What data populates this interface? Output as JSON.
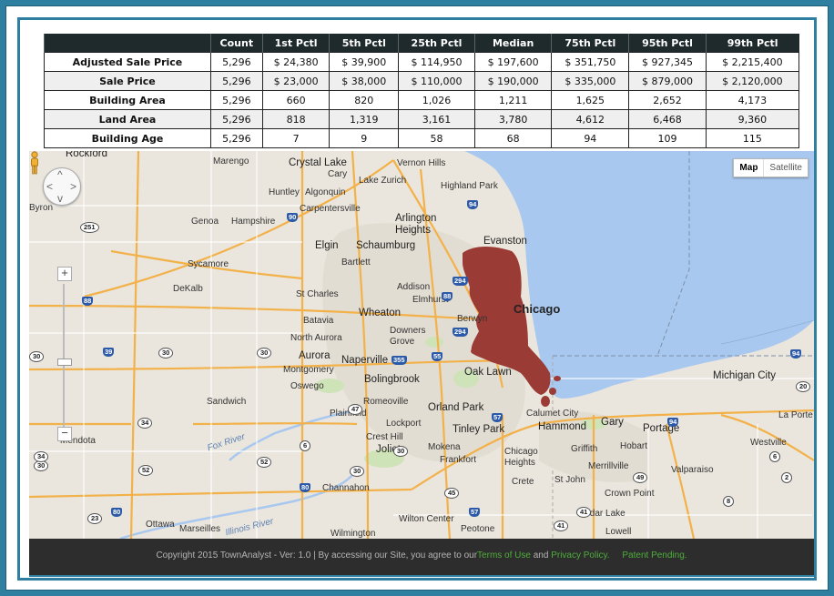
{
  "table": {
    "headers": [
      "",
      "Count",
      "1st Pctl",
      "5th Pctl",
      "25th Pctl",
      "Median",
      "75th Pctl",
      "95th Pctl",
      "99th Pctl"
    ],
    "rows": [
      {
        "label": "Adjusted Sale Price",
        "values": [
          "5,296",
          "$ 24,380",
          "$ 39,900",
          "$ 114,950",
          "$ 197,600",
          "$ 351,750",
          "$ 927,345",
          "$ 2,215,400"
        ]
      },
      {
        "label": "Sale Price",
        "values": [
          "5,296",
          "$ 23,000",
          "$ 38,000",
          "$ 110,000",
          "$ 190,000",
          "$ 335,000",
          "$ 879,000",
          "$ 2,120,000"
        ]
      },
      {
        "label": "Building Area",
        "values": [
          "5,296",
          "660",
          "820",
          "1,026",
          "1,211",
          "1,625",
          "2,652",
          "4,173"
        ]
      },
      {
        "label": "Land Area",
        "values": [
          "5,296",
          "818",
          "1,319",
          "3,161",
          "3,780",
          "4,612",
          "6,468",
          "9,360"
        ]
      },
      {
        "label": "Building Age",
        "values": [
          "5,296",
          "7",
          "9",
          "58",
          "68",
          "94",
          "109",
          "115"
        ]
      }
    ]
  },
  "map": {
    "type_buttons": {
      "map": "Map",
      "satellite": "Satellite"
    },
    "zoom_in": "+",
    "zoom_out": "−",
    "pan_arrows": {
      "up": "^",
      "down": "v",
      "left": "<",
      "right": ">"
    },
    "places": [
      {
        "name": "Rockford"
      },
      {
        "name": "Marengo"
      },
      {
        "name": "Crystal Lake"
      },
      {
        "name": "Cary"
      },
      {
        "name": "Vernon Hills"
      },
      {
        "name": "Lake Zurich"
      },
      {
        "name": "Highland Park"
      },
      {
        "name": "Huntley"
      },
      {
        "name": "Algonquin"
      },
      {
        "name": "Byron"
      },
      {
        "name": "Carpentersville"
      },
      {
        "name": "Arlington Heights"
      },
      {
        "name": "Genoa"
      },
      {
        "name": "Hampshire"
      },
      {
        "name": "Elgin"
      },
      {
        "name": "Schaumburg"
      },
      {
        "name": "Evanston"
      },
      {
        "name": "Sycamore"
      },
      {
        "name": "Bartlett"
      },
      {
        "name": "DeKalb"
      },
      {
        "name": "St Charles"
      },
      {
        "name": "Addison"
      },
      {
        "name": "Elmhurst"
      },
      {
        "name": "Chicago"
      },
      {
        "name": "Wheaton"
      },
      {
        "name": "Berwyn"
      },
      {
        "name": "Batavia"
      },
      {
        "name": "Downers Grove"
      },
      {
        "name": "North Aurora"
      },
      {
        "name": "Aurora"
      },
      {
        "name": "Naperville"
      },
      {
        "name": "Montgomery"
      },
      {
        "name": "Bolingbrook"
      },
      {
        "name": "Oak Lawn"
      },
      {
        "name": "Oswego"
      },
      {
        "name": "Sandwich"
      },
      {
        "name": "Romeoville"
      },
      {
        "name": "Orland Park"
      },
      {
        "name": "Plainfield"
      },
      {
        "name": "Calumet City"
      },
      {
        "name": "Hammond"
      },
      {
        "name": "Gary"
      },
      {
        "name": "Portage"
      },
      {
        "name": "Michigan City"
      },
      {
        "name": "La Porte"
      },
      {
        "name": "Lockport"
      },
      {
        "name": "Tinley Park"
      },
      {
        "name": "Crest Hill"
      },
      {
        "name": "Mendota"
      },
      {
        "name": "Joliet"
      },
      {
        "name": "Mokena"
      },
      {
        "name": "Frankfort"
      },
      {
        "name": "Griffith"
      },
      {
        "name": "Hobart"
      },
      {
        "name": "Westville"
      },
      {
        "name": "Chicago Heights"
      },
      {
        "name": "Merrillville"
      },
      {
        "name": "Valparaiso"
      },
      {
        "name": "Crete"
      },
      {
        "name": "St John"
      },
      {
        "name": "Channahon"
      },
      {
        "name": "Crown Point"
      },
      {
        "name": "Cedar Lake"
      },
      {
        "name": "Wilton Center"
      },
      {
        "name": "Ottawa"
      },
      {
        "name": "Marseilles"
      },
      {
        "name": "Wilmington"
      },
      {
        "name": "Peotone"
      },
      {
        "name": "Lowell"
      },
      {
        "name": "Fox River"
      },
      {
        "name": "Illinois River"
      }
    ],
    "shields": [
      "251",
      "90",
      "94",
      "88",
      "294",
      "294",
      "88",
      "30",
      "39",
      "30",
      "355",
      "55",
      "30",
      "34",
      "52",
      "52",
      "80",
      "80",
      "57",
      "6",
      "94",
      "94",
      "30",
      "30",
      "47",
      "34",
      "30",
      "45",
      "57",
      "23",
      "6",
      "20",
      "41",
      "41",
      "49",
      "8",
      "2"
    ]
  },
  "footer": {
    "prefix": "Copyright 2015 TownAnalyst - Ver: 1.0 | By accessing our Site, you agree to our",
    "terms": "Terms of Use",
    "and": " and ",
    "privacy": "Privacy Policy.",
    "patent": "Patent Pending."
  },
  "colors": {
    "frame": "#2e7fa0",
    "table_header": "#1f2a2d",
    "cluster": "#9b3b35",
    "water": "#a9c8ef"
  }
}
